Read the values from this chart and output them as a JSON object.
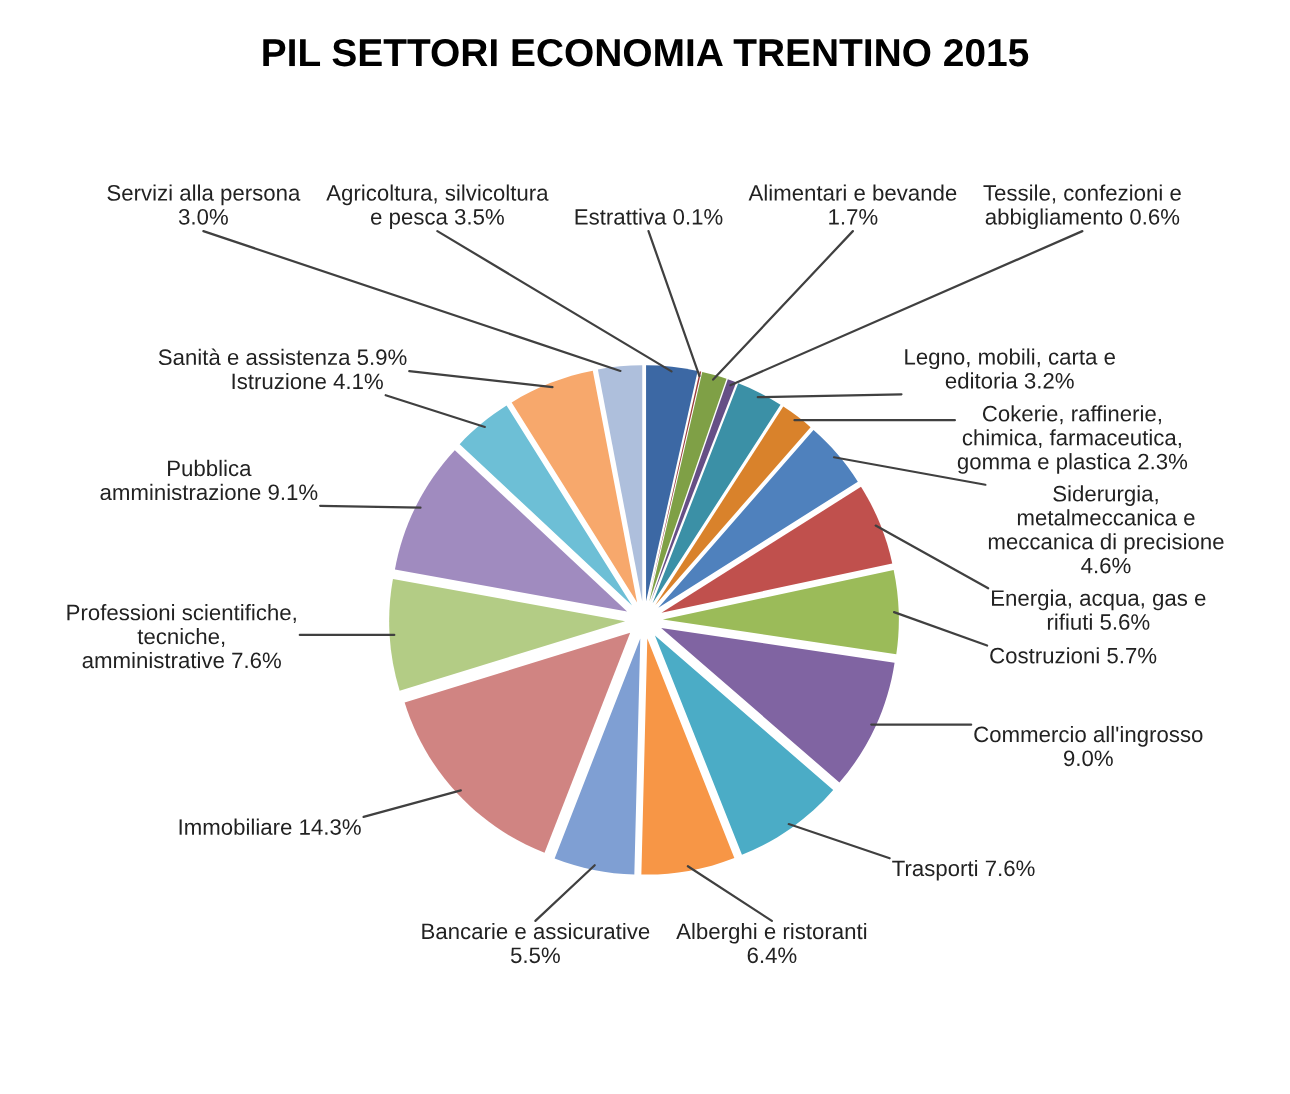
{
  "chart_data": {
    "type": "pie",
    "title": "PIL SETTORI ECONOMIA TRENTINO 2015",
    "categories": [
      "Agricoltura, silvicoltura\ne pesca",
      "Estrattiva",
      "Alimentari e bevande",
      "Tessile, confezioni e\nabbigliamento",
      "Legno, mobili, carta e\neditoria",
      "Cokerie, raffinerie,\nchimica, farmaceutica,\ngomma e plastica",
      "Siderurgia,\nmetalmeccanica e\nmeccanica di precisione",
      "Energia, acqua, gas e\nrifiuti",
      "Costruzioni",
      "Commercio all'ingrosso",
      "Trasporti",
      "Alberghi e ristoranti",
      "Bancarie e assicurative",
      "Immobiliare",
      "Professioni scientifiche,\ntecniche,\namministrative",
      "Pubblica\namministrazione",
      "Istruzione",
      "Sanità e assistenza",
      "Servizi alla persona"
    ],
    "values": [
      3.5,
      0.1,
      1.7,
      0.6,
      3.2,
      2.3,
      4.6,
      5.6,
      5.7,
      9.0,
      7.6,
      6.4,
      5.5,
      14.3,
      7.6,
      9.1,
      4.1,
      5.9,
      3.0
    ],
    "value_labels": [
      "3.5%",
      "0.1%",
      "1.7%",
      "0.6%",
      "3.2%",
      "2.3%",
      "4.6%",
      "5.6%",
      "5.7%",
      "9.0%",
      "7.6%",
      "6.4%",
      "5.5%",
      "14.3%",
      "7.6%",
      "9.1%",
      "4.1%",
      "5.9%",
      "3.0%"
    ],
    "colors": [
      "#3c68a4",
      "#9b3d3a",
      "#7fa046",
      "#664f86",
      "#3b90a6",
      "#d9822b",
      "#4f81bd",
      "#c0504d",
      "#9bbb59",
      "#8064a2",
      "#4bacc6",
      "#f79646",
      "#7f9fd3",
      "#d08482",
      "#b3cc85",
      "#a08bbf",
      "#6dbfd6",
      "#f7a86c",
      "#aebfdc"
    ]
  }
}
